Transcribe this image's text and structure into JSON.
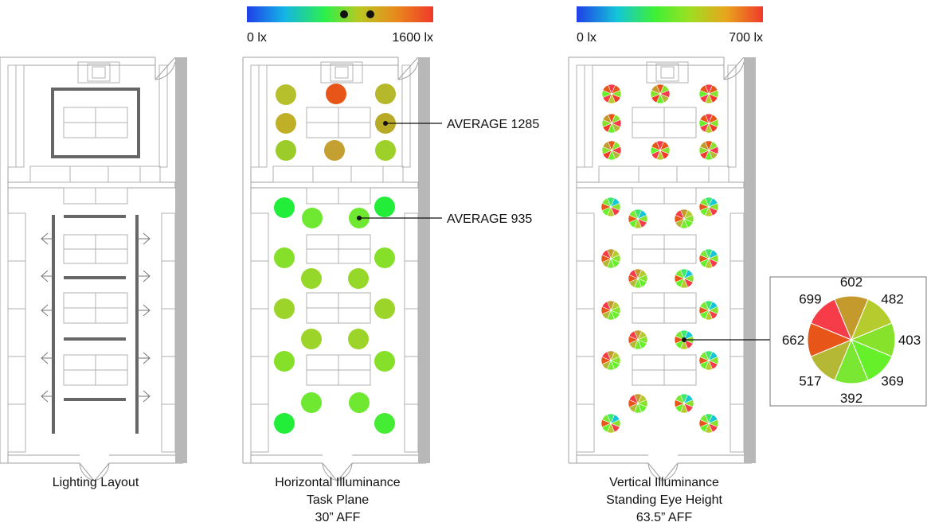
{
  "legends": {
    "horizontal": {
      "min_label": "0 lx",
      "max_label": "1600 lx"
    },
    "vertical": {
      "min_label": "0 lx",
      "max_label": "700 lx"
    }
  },
  "annotations": {
    "upper_average": "AVERAGE  1285",
    "lower_average": "AVERAGE  935"
  },
  "captions": {
    "layout": "Lighting Layout",
    "horizontal": [
      "Horizontal Illuminance",
      "Task Plane",
      "30” AFF"
    ],
    "vertical": [
      "Vertical Illuminance",
      "Standing Eye Height",
      "63.5” AFF"
    ]
  },
  "colors": {
    "wall_gray": "#b8b8b8",
    "fixture_gray": "#666666",
    "line_gray": "#a0a0a0"
  },
  "chart_data": {
    "type": "pie",
    "values": [
      602,
      482,
      403,
      369,
      392,
      517,
      662,
      699
    ],
    "labels": [
      "602",
      "482",
      "403",
      "369",
      "392",
      "517",
      "662",
      "699"
    ],
    "colors": [
      "#c39a2b",
      "#b6cc2e",
      "#86e22a",
      "#66f02a",
      "#7ae832",
      "#b4b834",
      "#e85518",
      "#f53c48"
    ]
  }
}
